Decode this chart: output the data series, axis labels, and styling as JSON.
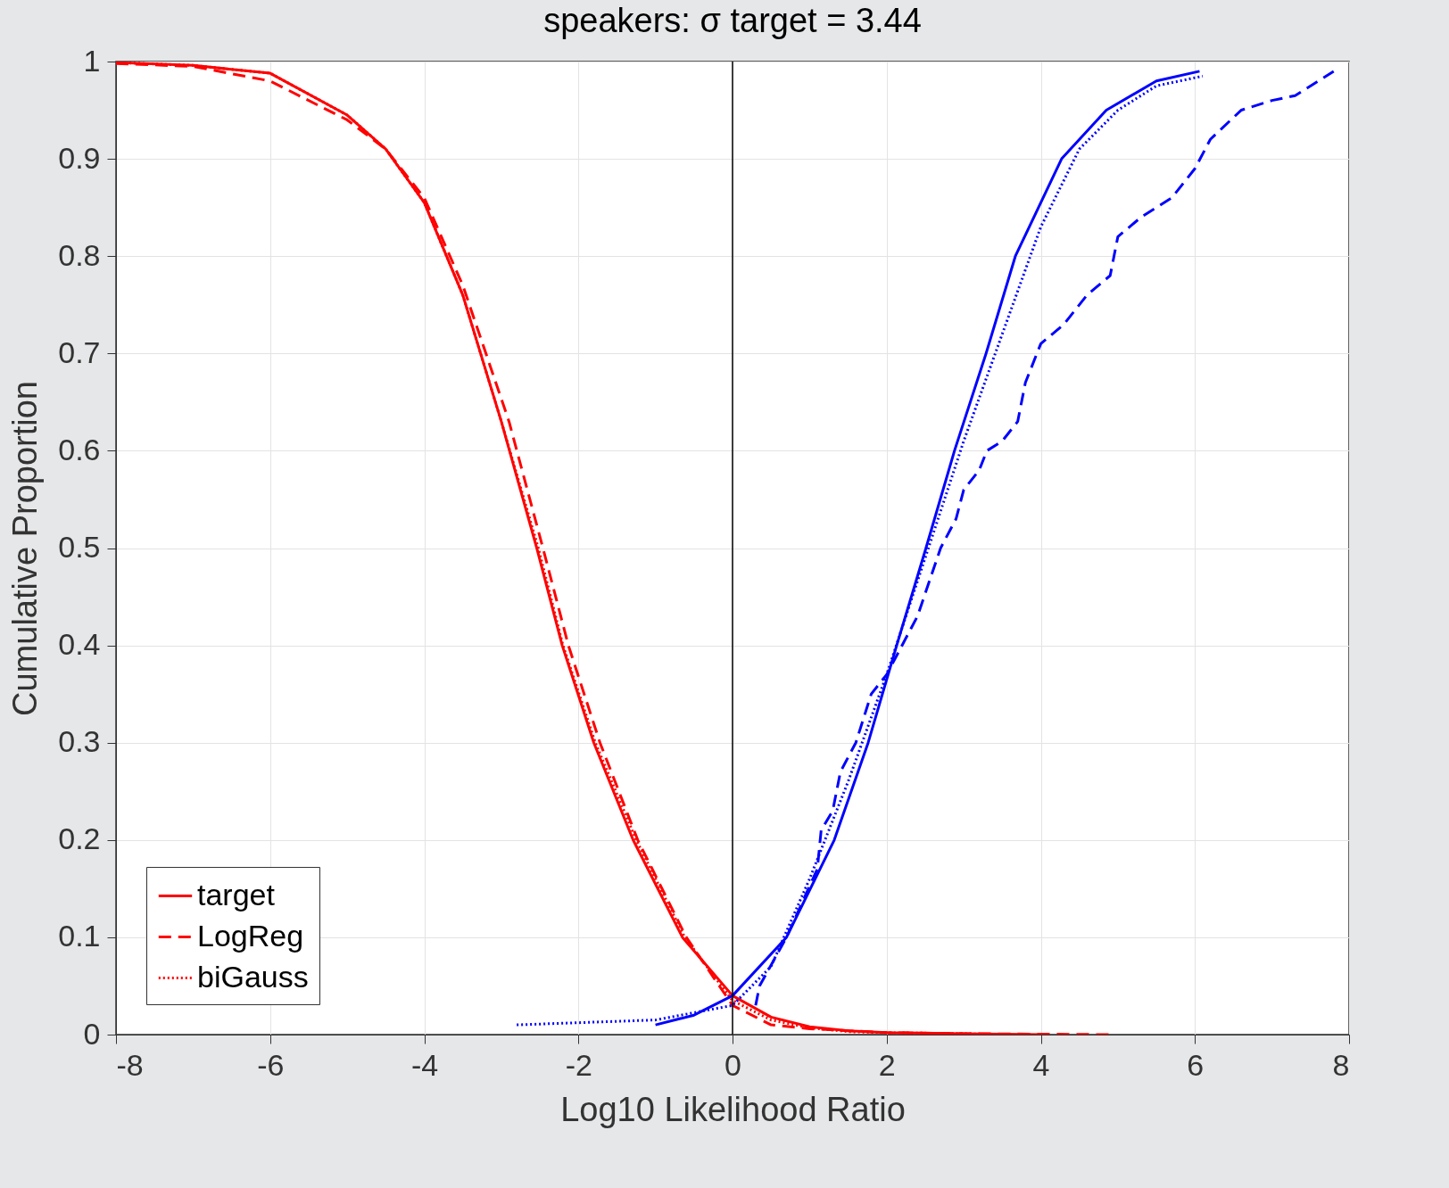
{
  "chart_data": {
    "type": "line",
    "title": "speakers:  σ target = 3.44",
    "xlabel": "Log10 Likelihood Ratio",
    "ylabel": "Cumulative Proportion",
    "xlim": [
      -8,
      8
    ],
    "xticks": [
      -8,
      -6,
      -4,
      -2,
      0,
      2,
      4,
      6,
      8
    ],
    "ylim": [
      0,
      1
    ],
    "yticks": [
      0,
      0.1,
      0.2,
      0.3,
      0.4,
      0.5,
      0.6,
      0.7,
      0.8,
      0.9,
      1
    ],
    "grid": true,
    "legend": "bottom left",
    "marker": "none",
    "ref_lines": [
      {
        "axis": "x",
        "value": 0,
        "color": "#000000"
      }
    ],
    "series": [
      {
        "name": "target",
        "color": "#ff0000",
        "line_style": "solid",
        "x": [
          -8,
          -7,
          -6,
          -5,
          -4.5,
          -4,
          -3.5,
          -3,
          -2.54,
          -2.21,
          -1.8,
          -1.29,
          -0.65,
          0,
          0.5,
          1,
          1.5,
          2,
          3,
          4
        ],
        "values": [
          0.999,
          0.996,
          0.988,
          0.945,
          0.91,
          0.855,
          0.76,
          0.63,
          0.5,
          0.4,
          0.3,
          0.2,
          0.1,
          0.04,
          0.018,
          0.008,
          0.004,
          0.002,
          0.001,
          0
        ]
      },
      {
        "name": "LogReg",
        "color": "#ff0000",
        "line_style": "dashed",
        "x": [
          -8,
          -7,
          -6,
          -5,
          -4.5,
          -4,
          -3.5,
          -2.9,
          -2.46,
          -2.13,
          -1.72,
          -1.23,
          -0.6,
          0,
          0.5,
          1,
          2,
          3,
          4.9
        ],
        "values": [
          0.998,
          0.995,
          0.98,
          0.94,
          0.91,
          0.86,
          0.77,
          0.63,
          0.5,
          0.4,
          0.3,
          0.2,
          0.1,
          0.03,
          0.01,
          0.006,
          0.002,
          0.001,
          0
        ]
      },
      {
        "name": "biGauss",
        "color": "#ff0000",
        "line_style": "dotted",
        "x": [
          -8,
          -7,
          -6,
          -5,
          -4.5,
          -4,
          -3.5,
          -3,
          -2.52,
          -2.2,
          -1.78,
          -1.25,
          -0.62,
          0,
          0.5,
          1,
          1.5,
          2,
          3,
          3.5
        ],
        "values": [
          0.999,
          0.996,
          0.988,
          0.945,
          0.91,
          0.855,
          0.76,
          0.63,
          0.5,
          0.4,
          0.3,
          0.2,
          0.1,
          0.035,
          0.015,
          0.007,
          0.003,
          0.002,
          0.001,
          0
        ]
      },
      {
        "color": "#0000ff",
        "line_style": "solid",
        "x": [
          -1,
          -0.5,
          0,
          0.7,
          1.32,
          1.76,
          2.13,
          2.51,
          2.88,
          3.29,
          3.67,
          4.27,
          4.85,
          5.5,
          6.06
        ],
        "values": [
          0.01,
          0.02,
          0.04,
          0.1,
          0.2,
          0.3,
          0.4,
          0.5,
          0.6,
          0.7,
          0.8,
          0.9,
          0.95,
          0.98,
          0.99
        ]
      },
      {
        "color": "#0000ff",
        "line_style": "dashed",
        "x": [
          0.3,
          0.35,
          0.7,
          1.1,
          1.15,
          1.3,
          1.4,
          1.6,
          1.8,
          2,
          2.4,
          2.7,
          2.9,
          3,
          3.2,
          3.3,
          3.5,
          3.7,
          3.8,
          4,
          4.3,
          4.6,
          4.9,
          5,
          5.3,
          5.7,
          6,
          6.2,
          6.6,
          7,
          7.3,
          7.8
        ],
        "values": [
          0.03,
          0.05,
          0.1,
          0.17,
          0.21,
          0.23,
          0.27,
          0.3,
          0.35,
          0.37,
          0.43,
          0.5,
          0.53,
          0.56,
          0.58,
          0.6,
          0.61,
          0.63,
          0.67,
          0.71,
          0.73,
          0.76,
          0.78,
          0.82,
          0.84,
          0.86,
          0.89,
          0.92,
          0.95,
          0.96,
          0.965,
          0.99
        ]
      },
      {
        "color": "#0000ff",
        "line_style": "dotted",
        "x": [
          -2.8,
          -1,
          0,
          0.5,
          1,
          1.5,
          2,
          2.5,
          3,
          3.5,
          4,
          4.5,
          5,
          5.5,
          6.1
        ],
        "values": [
          0.01,
          0.015,
          0.03,
          0.07,
          0.16,
          0.26,
          0.37,
          0.49,
          0.61,
          0.72,
          0.83,
          0.91,
          0.95,
          0.975,
          0.985
        ]
      }
    ]
  }
}
